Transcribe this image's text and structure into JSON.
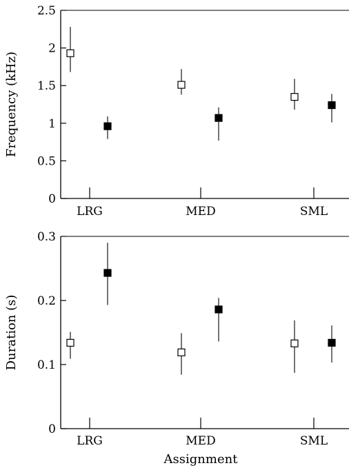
{
  "chart_data": [
    {
      "type": "scatter",
      "title": "",
      "xlabel": "",
      "ylabel": "Frequency (kHz)",
      "ylim": [
        0,
        2.5
      ],
      "yticks": [
        "0",
        "0.5",
        "1",
        "1.5",
        "2",
        "2.5"
      ],
      "categories": [
        "LRG",
        "MED",
        "SML"
      ],
      "grid": false,
      "legend": "none",
      "series": [
        {
          "marker": "open-square",
          "color": "#000000",
          "values": [
            1.93,
            1.51,
            1.35
          ],
          "error_low": [
            1.68,
            1.38,
            1.18
          ],
          "error_high": [
            2.28,
            1.72,
            1.59
          ]
        },
        {
          "marker": "filled-square",
          "color": "#000000",
          "values": [
            0.96,
            1.07,
            1.24
          ],
          "error_low": [
            0.79,
            0.77,
            1.01
          ],
          "error_high": [
            1.09,
            1.21,
            1.39
          ]
        }
      ]
    },
    {
      "type": "scatter",
      "title": "",
      "xlabel": "Assignment",
      "ylabel": "Duration (s)",
      "ylim": [
        0,
        0.3
      ],
      "yticks": [
        "0",
        "0.1",
        "0.2",
        "0.3"
      ],
      "categories": [
        "LRG",
        "MED",
        "SML"
      ],
      "grid": false,
      "legend": "none",
      "series": [
        {
          "marker": "open-square",
          "color": "#000000",
          "values": [
            0.134,
            0.119,
            0.133
          ],
          "error_low": [
            0.109,
            0.084,
            0.087
          ],
          "error_high": [
            0.151,
            0.149,
            0.169
          ]
        },
        {
          "marker": "filled-square",
          "color": "#000000",
          "values": [
            0.243,
            0.186,
            0.134
          ],
          "error_low": [
            0.193,
            0.136,
            0.103
          ],
          "error_high": [
            0.29,
            0.204,
            0.161
          ]
        }
      ]
    }
  ]
}
